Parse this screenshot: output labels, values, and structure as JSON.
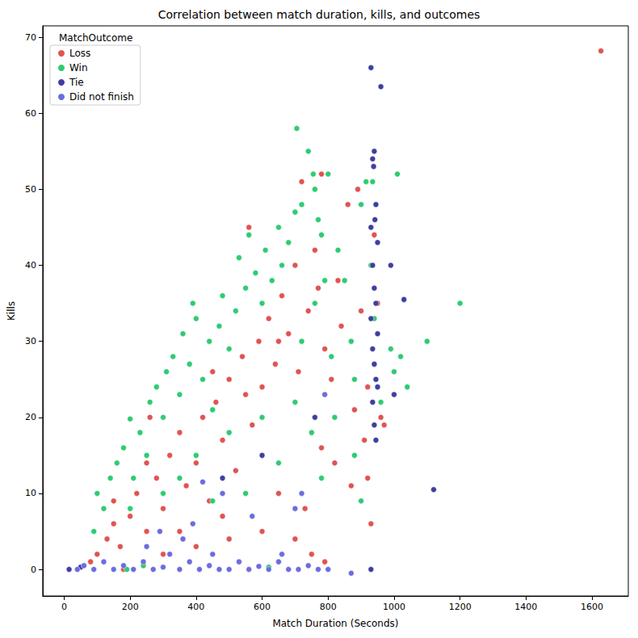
{
  "chart_data": {
    "type": "scatter",
    "title": "Correlation between match duration, kills, and outcomes",
    "x_label": "Match Duration (Seconds)",
    "y_label": "Kills",
    "legend_title": "MatchOutcome",
    "legend": "upper left",
    "grid": false,
    "marker": "circle",
    "xlim": [
      -65,
      1710
    ],
    "ylim": [
      -3.5,
      71.5
    ],
    "xticks": [
      0,
      200,
      400,
      600,
      800,
      1000,
      1200,
      1400,
      1600
    ],
    "yticks": [
      0,
      10,
      20,
      30,
      40,
      50,
      60,
      70
    ],
    "series": [
      {
        "name": "Loss",
        "color": "#e15353",
        "values": [
          [
            80,
            1
          ],
          [
            100,
            2
          ],
          [
            130,
            4
          ],
          [
            150,
            6
          ],
          [
            170,
            3
          ],
          [
            200,
            7
          ],
          [
            220,
            10
          ],
          [
            250,
            5
          ],
          [
            260,
            20
          ],
          [
            280,
            12
          ],
          [
            300,
            8
          ],
          [
            320,
            15
          ],
          [
            350,
            18
          ],
          [
            370,
            11
          ],
          [
            400,
            14
          ],
          [
            420,
            20
          ],
          [
            440,
            9
          ],
          [
            460,
            22
          ],
          [
            480,
            17
          ],
          [
            500,
            25
          ],
          [
            520,
            13
          ],
          [
            540,
            28
          ],
          [
            560,
            45
          ],
          [
            570,
            19
          ],
          [
            590,
            30
          ],
          [
            600,
            24
          ],
          [
            620,
            33
          ],
          [
            640,
            27
          ],
          [
            660,
            36
          ],
          [
            680,
            31
          ],
          [
            700,
            40
          ],
          [
            720,
            51
          ],
          [
            740,
            34
          ],
          [
            760,
            42
          ],
          [
            780,
            52
          ],
          [
            790,
            29
          ],
          [
            810,
            25
          ],
          [
            830,
            38
          ],
          [
            860,
            48
          ],
          [
            880,
            21
          ],
          [
            890,
            50
          ],
          [
            900,
            34
          ],
          [
            910,
            17
          ],
          [
            920,
            12
          ],
          [
            930,
            6
          ],
          [
            940,
            44
          ],
          [
            950,
            35
          ],
          [
            960,
            20
          ],
          [
            970,
            19
          ],
          [
            1627,
            68.2
          ],
          [
            180,
            0
          ],
          [
            400,
            3
          ],
          [
            600,
            5
          ],
          [
            700,
            4
          ],
          [
            750,
            2
          ],
          [
            790,
            1
          ],
          [
            730,
            8
          ],
          [
            650,
            10
          ],
          [
            500,
            4
          ],
          [
            300,
            2
          ],
          [
            450,
            26
          ],
          [
            550,
            23
          ],
          [
            650,
            30
          ],
          [
            710,
            26
          ],
          [
            770,
            37
          ],
          [
            840,
            32
          ],
          [
            350,
            5
          ],
          [
            250,
            14
          ],
          [
            150,
            9
          ],
          [
            870,
            11
          ],
          [
            920,
            24
          ],
          [
            780,
            16
          ],
          [
            820,
            14
          ],
          [
            480,
            7
          ]
        ]
      },
      {
        "name": "Win",
        "color": "#2ecc71",
        "values": [
          [
            90,
            5
          ],
          [
            100,
            10
          ],
          [
            120,
            8
          ],
          [
            140,
            12
          ],
          [
            160,
            14
          ],
          [
            180,
            16
          ],
          [
            200,
            19.8
          ],
          [
            210,
            12
          ],
          [
            230,
            18
          ],
          [
            250,
            15
          ],
          [
            260,
            22
          ],
          [
            280,
            24
          ],
          [
            300,
            20
          ],
          [
            310,
            26
          ],
          [
            330,
            28
          ],
          [
            350,
            23
          ],
          [
            360,
            31
          ],
          [
            380,
            27
          ],
          [
            390,
            35
          ],
          [
            400,
            33
          ],
          [
            420,
            25
          ],
          [
            440,
            30
          ],
          [
            450,
            21
          ],
          [
            470,
            32
          ],
          [
            480,
            36
          ],
          [
            500,
            29
          ],
          [
            520,
            34
          ],
          [
            530,
            41
          ],
          [
            550,
            37
          ],
          [
            560,
            44
          ],
          [
            580,
            39
          ],
          [
            600,
            35
          ],
          [
            610,
            42
          ],
          [
            630,
            38
          ],
          [
            650,
            45
          ],
          [
            660,
            40
          ],
          [
            680,
            43
          ],
          [
            700,
            47
          ],
          [
            705,
            58
          ],
          [
            720,
            48
          ],
          [
            740,
            55
          ],
          [
            755,
            52
          ],
          [
            760,
            50
          ],
          [
            770,
            46
          ],
          [
            780,
            44
          ],
          [
            800,
            52
          ],
          [
            810,
            28
          ],
          [
            830,
            42
          ],
          [
            850,
            38
          ],
          [
            870,
            30
          ],
          [
            880,
            25
          ],
          [
            900,
            48
          ],
          [
            915,
            51
          ],
          [
            930,
            40
          ],
          [
            935,
            51
          ],
          [
            1000,
            26
          ],
          [
            1010,
            52
          ],
          [
            1020,
            28
          ],
          [
            1040,
            24
          ],
          [
            1100,
            30
          ],
          [
            1200,
            35
          ],
          [
            300,
            10
          ],
          [
            400,
            15
          ],
          [
            500,
            18
          ],
          [
            600,
            20
          ],
          [
            700,
            22
          ],
          [
            750,
            18
          ],
          [
            780,
            12
          ],
          [
            200,
            8
          ],
          [
            350,
            12
          ],
          [
            450,
            9
          ],
          [
            550,
            10
          ],
          [
            650,
            14
          ],
          [
            720,
            30
          ],
          [
            760,
            35
          ],
          [
            790,
            38
          ],
          [
            240,
            0.5
          ],
          [
            190,
            0
          ],
          [
            620,
            0.3
          ],
          [
            880,
            15
          ],
          [
            900,
            9
          ],
          [
            990,
            29
          ],
          [
            960,
            22
          ],
          [
            940,
            33
          ],
          [
            820,
            20
          ]
        ]
      },
      {
        "name": "Tie",
        "color": "#3f3fa0",
        "values": [
          [
            15,
            0
          ],
          [
            50,
            0.3
          ],
          [
            930,
            66
          ],
          [
            960,
            63.5
          ],
          [
            935,
            54
          ],
          [
            940,
            55
          ],
          [
            938,
            53
          ],
          [
            945,
            48
          ],
          [
            942,
            46
          ],
          [
            950,
            43
          ],
          [
            930,
            45
          ],
          [
            935,
            40
          ],
          [
            940,
            37
          ],
          [
            945,
            35
          ],
          [
            930,
            33
          ],
          [
            950,
            31
          ],
          [
            935,
            29
          ],
          [
            940,
            27
          ],
          [
            945,
            25
          ],
          [
            950,
            24
          ],
          [
            935,
            22
          ],
          [
            940,
            19
          ],
          [
            945,
            17
          ],
          [
            990,
            40
          ],
          [
            1030,
            35.5
          ],
          [
            1000,
            23
          ],
          [
            1120,
            10.5
          ],
          [
            930,
            0
          ],
          [
            760,
            20
          ],
          [
            600,
            15
          ],
          [
            480,
            12
          ]
        ]
      },
      {
        "name": "Did not finish",
        "color": "#6c6ce0",
        "values": [
          [
            40,
            0
          ],
          [
            60,
            0.5
          ],
          [
            90,
            0
          ],
          [
            120,
            1
          ],
          [
            150,
            0
          ],
          [
            180,
            0.5
          ],
          [
            210,
            0
          ],
          [
            240,
            1
          ],
          [
            270,
            0
          ],
          [
            300,
            0.3
          ],
          [
            320,
            2
          ],
          [
            350,
            0
          ],
          [
            380,
            1
          ],
          [
            410,
            0
          ],
          [
            440,
            0.5
          ],
          [
            470,
            0
          ],
          [
            500,
            0
          ],
          [
            530,
            1
          ],
          [
            560,
            0
          ],
          [
            590,
            0.4
          ],
          [
            620,
            0
          ],
          [
            650,
            1
          ],
          [
            680,
            0
          ],
          [
            710,
            0
          ],
          [
            740,
            0.5
          ],
          [
            770,
            0
          ],
          [
            800,
            0
          ],
          [
            870,
            -0.5
          ],
          [
            290,
            5
          ],
          [
            360,
            4
          ],
          [
            420,
            11.5
          ],
          [
            390,
            6
          ],
          [
            480,
            10
          ],
          [
            570,
            7
          ],
          [
            700,
            8
          ],
          [
            720,
            10
          ],
          [
            660,
            2
          ],
          [
            790,
            23
          ],
          [
            250,
            3
          ],
          [
            450,
            2
          ]
        ]
      }
    ]
  }
}
